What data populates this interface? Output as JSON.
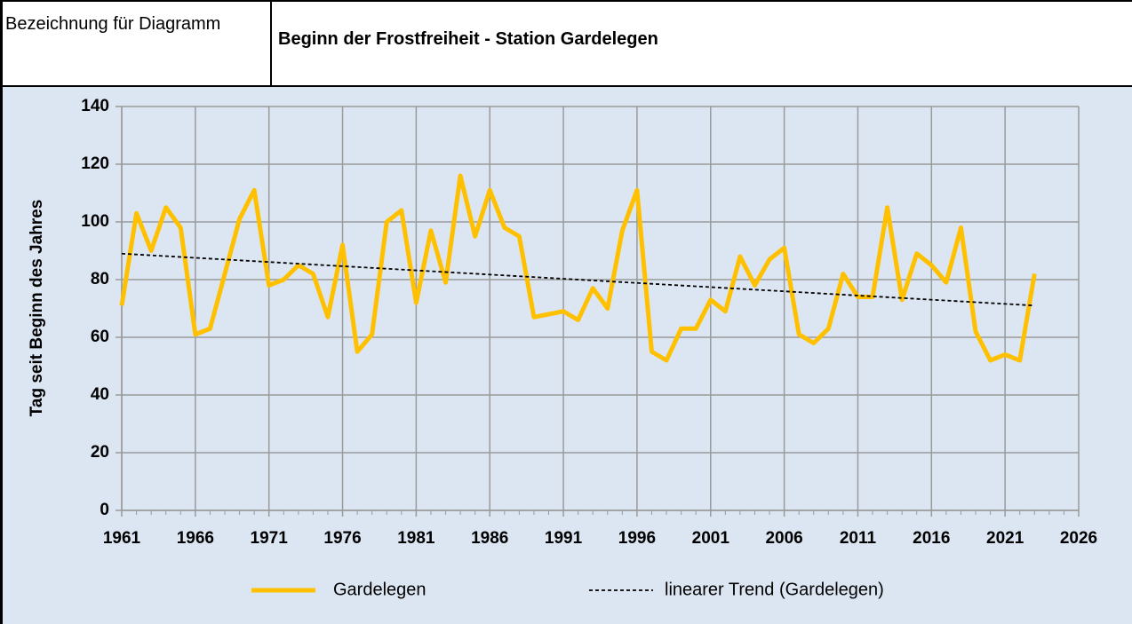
{
  "header": {
    "label": "Bezeichnung für Diagramm"
  },
  "chart_data": {
    "type": "line",
    "title": "Beginn der Frostfreiheit - Station Gardelegen",
    "y_label": "Tag seit Beginn des Jahres",
    "x": [
      1961,
      1962,
      1963,
      1964,
      1965,
      1966,
      1967,
      1968,
      1969,
      1970,
      1971,
      1972,
      1973,
      1974,
      1975,
      1976,
      1977,
      1978,
      1979,
      1980,
      1981,
      1982,
      1983,
      1984,
      1985,
      1986,
      1987,
      1988,
      1989,
      1990,
      1991,
      1992,
      1993,
      1994,
      1995,
      1996,
      1997,
      1998,
      1999,
      2000,
      2001,
      2002,
      2003,
      2004,
      2005,
      2006,
      2007,
      2008,
      2009,
      2010,
      2011,
      2012,
      2013,
      2014,
      2015,
      2016,
      2017,
      2018,
      2019,
      2020,
      2021,
      2022,
      2023
    ],
    "series": [
      {
        "name": "Gardelegen",
        "color": "#ffc000",
        "values": [
          71,
          103,
          90,
          105,
          98,
          61,
          63,
          82,
          101,
          111,
          78,
          80,
          85,
          82,
          67,
          92,
          55,
          61,
          100,
          104,
          72,
          97,
          79,
          116,
          95,
          111,
          98,
          95,
          67,
          68,
          69,
          66,
          77,
          70,
          97,
          111,
          55,
          52,
          63,
          63,
          73,
          69,
          88,
          78,
          87,
          91,
          61,
          58,
          63,
          82,
          74,
          74,
          105,
          73,
          89,
          85,
          79,
          98,
          62,
          52,
          54,
          52,
          82
        ]
      },
      {
        "name": "linearer Trend (Gardelegen)",
        "color": "#000000",
        "dashed": true,
        "x": [
          1961,
          2023
        ],
        "values": [
          89,
          71
        ]
      }
    ],
    "xlim": [
      1961,
      2026
    ],
    "xticks": [
      1961,
      1966,
      1971,
      1976,
      1981,
      1986,
      1991,
      1996,
      2001,
      2006,
      2011,
      2016,
      2021,
      2026
    ],
    "ylim": [
      0,
      140
    ],
    "yticks": [
      0,
      20,
      40,
      60,
      80,
      100,
      120,
      140
    ],
    "grid": true,
    "legend": "bottom"
  }
}
